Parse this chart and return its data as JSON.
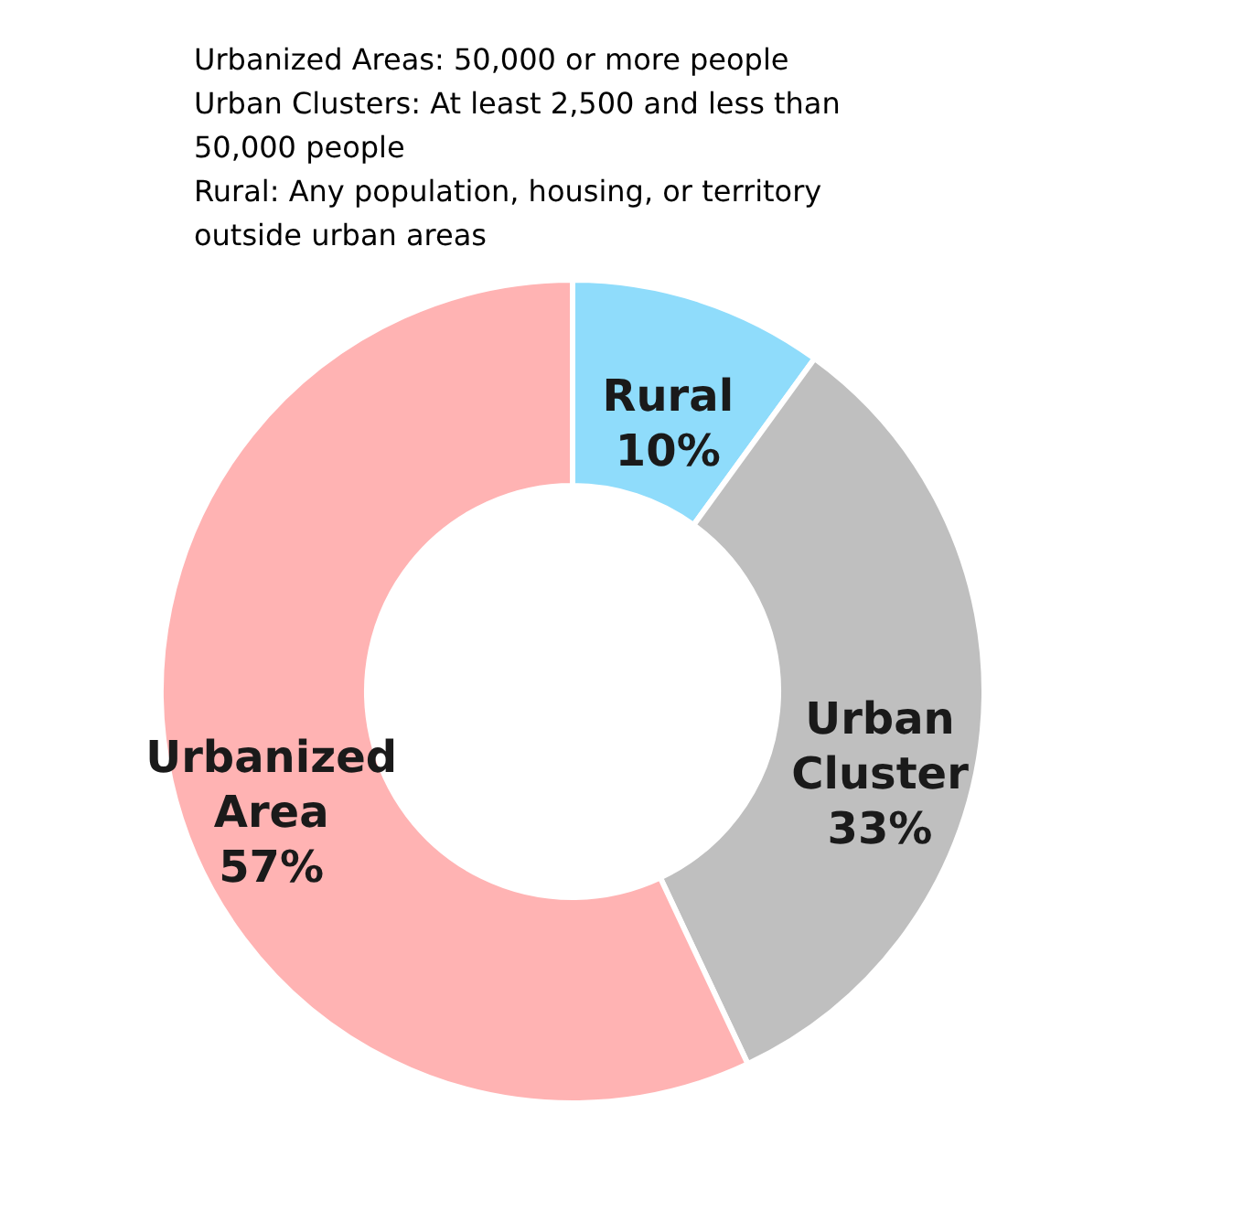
{
  "chart_data": {
    "type": "donut",
    "categories": [
      "Rural",
      "Urban Cluster",
      "Urbanized Area"
    ],
    "values": [
      10,
      33,
      57
    ],
    "colors": [
      "#8fdcfb",
      "#bfbfbf",
      "#ffb3b3"
    ],
    "value_labels": [
      "10%",
      "33%",
      "57%"
    ],
    "annotations": [
      "Urbanized Areas: 50,000 or more people",
      "Urban Clusters: At least 2,500 and less than 50,000 people",
      "Rural: Any population, housing, or territory outside urban areas"
    ]
  }
}
